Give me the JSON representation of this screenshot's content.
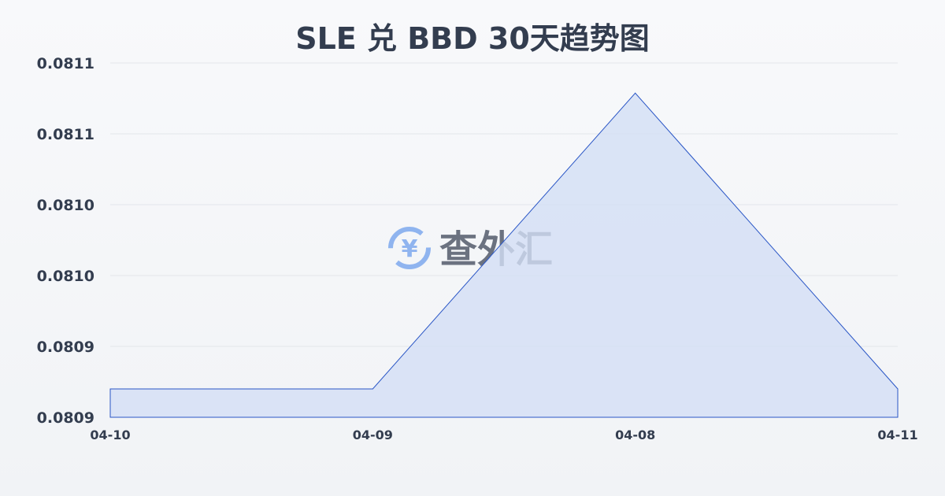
{
  "chart_data": {
    "type": "area",
    "title": "SLE 兑 BBD 30天趋势图",
    "xlabel": "",
    "ylabel": "",
    "categories": [
      "04-10",
      "04-09",
      "04-08",
      "04-11"
    ],
    "series": [
      {
        "values": [
          0.080916,
          0.080916,
          0.081083,
          0.080916
        ]
      }
    ],
    "ylim": [
      0.0809,
      0.0811
    ],
    "yticks": [
      0.0809,
      0.08094,
      0.08098,
      0.08102,
      0.08106,
      0.0811
    ],
    "ytick_labels": [
      "0.0809",
      "0.0809",
      "0.0810",
      "0.0810",
      "0.0811",
      "0.0811"
    ],
    "grid": true,
    "colors": {
      "line": "#2a56c6",
      "fill": "#d3def5",
      "grid": "#e3e6ea",
      "text": "#333d4f"
    }
  },
  "watermark": {
    "text": "查外汇",
    "icon": "yen-exchange-icon",
    "icon_color": "#8fb4ef",
    "text_color": "#6b7280"
  }
}
